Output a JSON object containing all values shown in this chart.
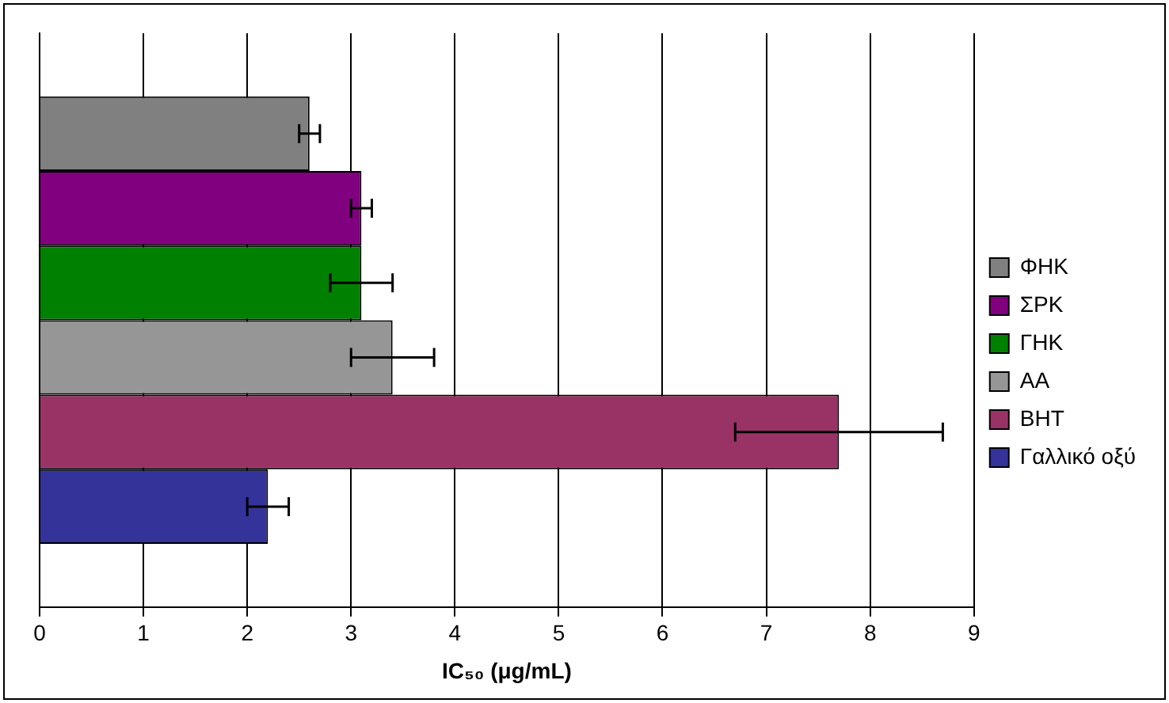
{
  "chart_data": {
    "type": "bar",
    "orientation": "horizontal",
    "xlabel": "IC₅₀ (μg/mL)",
    "categories": [
      null
    ],
    "series": [
      {
        "name": "ΦΗΚ",
        "color": "#808080",
        "values": [
          2.6
        ],
        "errors": [
          [
            2.5,
            2.7
          ]
        ]
      },
      {
        "name": "ΣΡΚ",
        "color": "#800080",
        "values": [
          3.1
        ],
        "errors": [
          [
            3.0,
            3.2
          ]
        ]
      },
      {
        "name": "ΓΗΚ",
        "color": "#008000",
        "values": [
          3.1
        ],
        "errors": [
          [
            2.8,
            3.4
          ]
        ]
      },
      {
        "name": "ΑΑ",
        "color": "#969696",
        "values": [
          3.4
        ],
        "errors": [
          [
            3.0,
            3.8
          ]
        ]
      },
      {
        "name": "ΒΗΤ",
        "color": "#993366",
        "values": [
          7.7
        ],
        "errors": [
          [
            6.7,
            8.7
          ]
        ]
      },
      {
        "name": "Γαλλικό οξύ",
        "color": "#333399",
        "values": [
          2.2
        ],
        "errors": [
          [
            2.0,
            2.4
          ]
        ]
      }
    ],
    "xlim": [
      0,
      9
    ],
    "xticks": [
      0,
      1,
      2,
      3,
      4,
      5,
      6,
      7,
      8,
      9
    ],
    "grid": "x",
    "legend": "right"
  }
}
